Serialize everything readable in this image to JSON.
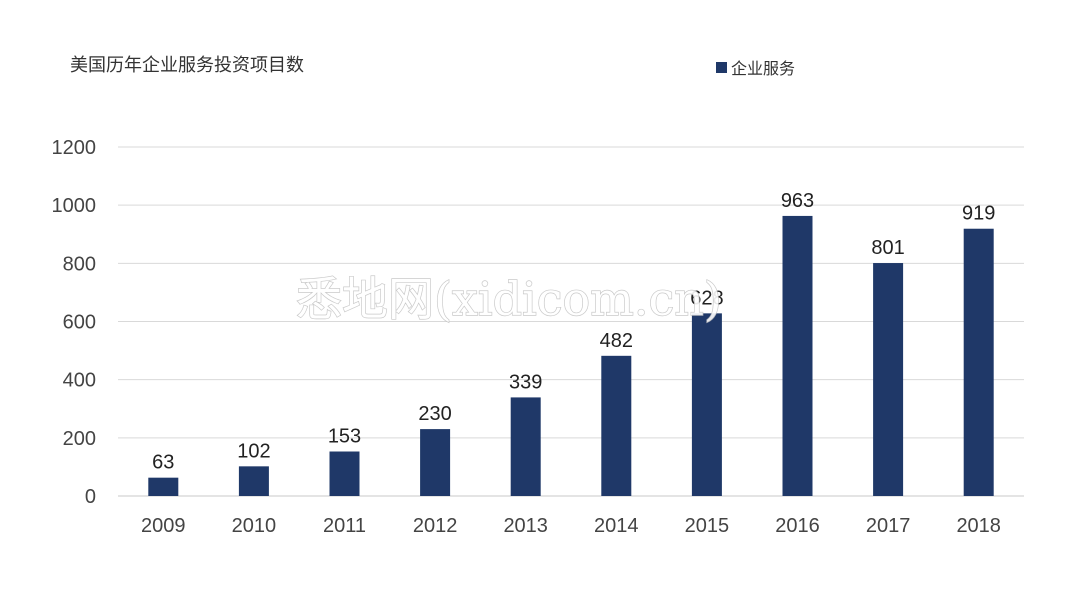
{
  "chart_data": {
    "type": "bar",
    "title": "美国历年企业服务投资项目数",
    "categories": [
      "2009",
      "2010",
      "2011",
      "2012",
      "2013",
      "2014",
      "2015",
      "2016",
      "2017",
      "2018"
    ],
    "series": [
      {
        "name": "企业服务",
        "values": [
          63,
          102,
          153,
          230,
          339,
          482,
          628,
          963,
          801,
          919
        ]
      }
    ],
    "ylim": [
      0,
      1200
    ],
    "yticks": [
      0,
      200,
      400,
      600,
      800,
      1000,
      1200
    ],
    "grid": true,
    "legend_position": "top-right",
    "bar_color": "#1f3868",
    "data_labels": true
  },
  "watermark": "悉地网(xidicom.cn)"
}
